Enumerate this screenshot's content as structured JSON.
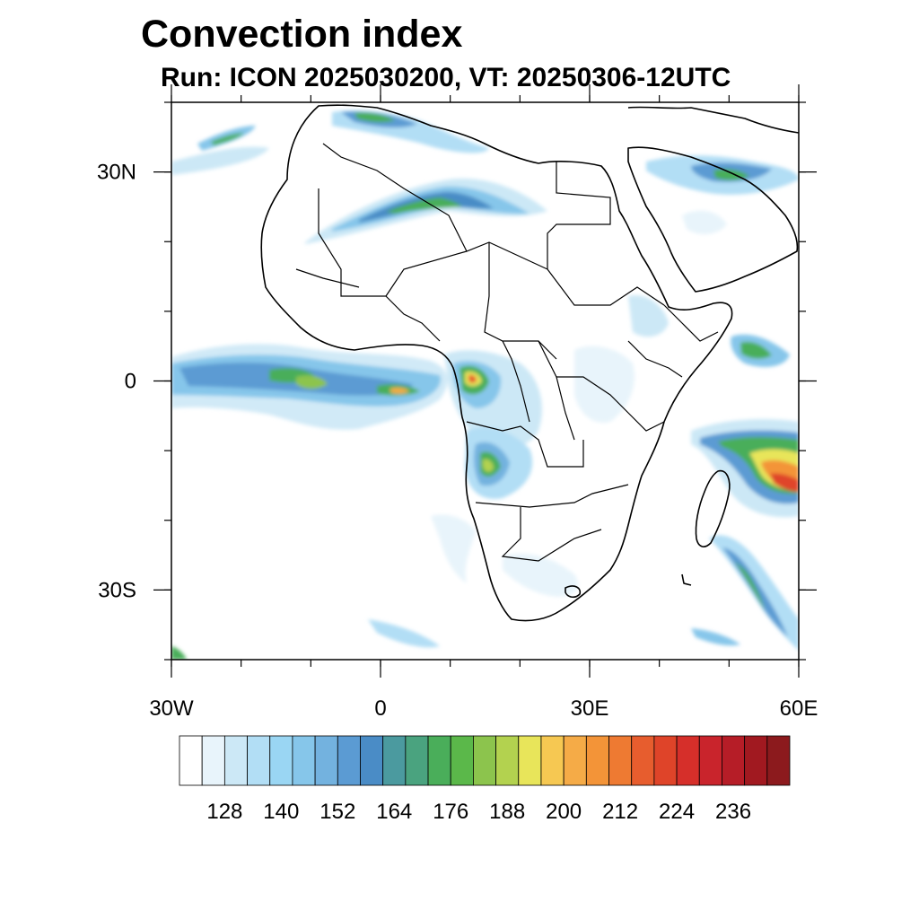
{
  "title": "Convection index",
  "subtitle": "Run: ICON 2025030200,  VT: 20250306-12UTC",
  "map": {
    "lon_range": [
      -30,
      60
    ],
    "lat_range": [
      -40,
      40
    ],
    "x_ticks": [
      {
        "lon": -30,
        "label": "30W"
      },
      {
        "lon": 0,
        "label": "0"
      },
      {
        "lon": 30,
        "label": "30E"
      },
      {
        "lon": 60,
        "label": "60E"
      }
    ],
    "y_ticks": [
      {
        "lat": 30,
        "label": "30N"
      },
      {
        "lat": 0,
        "label": "0"
      },
      {
        "lat": -30,
        "label": "30S"
      }
    ]
  },
  "colorbar": {
    "colors": [
      "#ffffff",
      "#e8f4fb",
      "#cce8f6",
      "#b2def5",
      "#9ad6f3",
      "#86c6ea",
      "#73b2df",
      "#5b9bd3",
      "#4a8cc6",
      "#4b9a9f",
      "#4aa37f",
      "#4aae5a",
      "#5bb84a",
      "#8cc44d",
      "#b3d24f",
      "#e8e55a",
      "#f6c852",
      "#f5ab47",
      "#f39438",
      "#ee7a32",
      "#e75d2e",
      "#df4429",
      "#d62f2a",
      "#c9242c",
      "#b61d27",
      "#a11920",
      "#8c1a1d"
    ],
    "tick_labels": [
      "128",
      "140",
      "152",
      "164",
      "176",
      "188",
      "200",
      "212",
      "224",
      "236"
    ]
  },
  "legend_colors": {
    "light": "#b2def5",
    "blue": "#5b9bd3",
    "green": "#4aae5a",
    "yellow": "#e8e55a",
    "orange": "#f39438",
    "red": "#d62f2a"
  }
}
